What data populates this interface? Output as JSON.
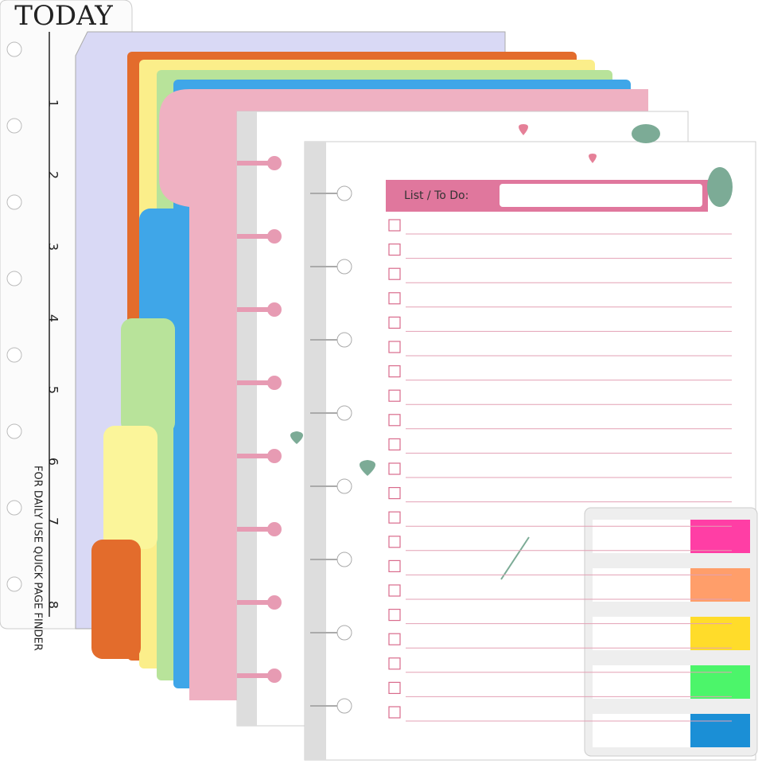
{
  "ruler": {
    "title": "TODAY",
    "numbers": [
      1,
      2,
      3,
      4,
      5,
      6,
      7,
      8
    ],
    "caption": "FOR DAILY USE QUICK PAGE FINDER"
  },
  "page": {
    "label": "List / To Do:"
  }
}
